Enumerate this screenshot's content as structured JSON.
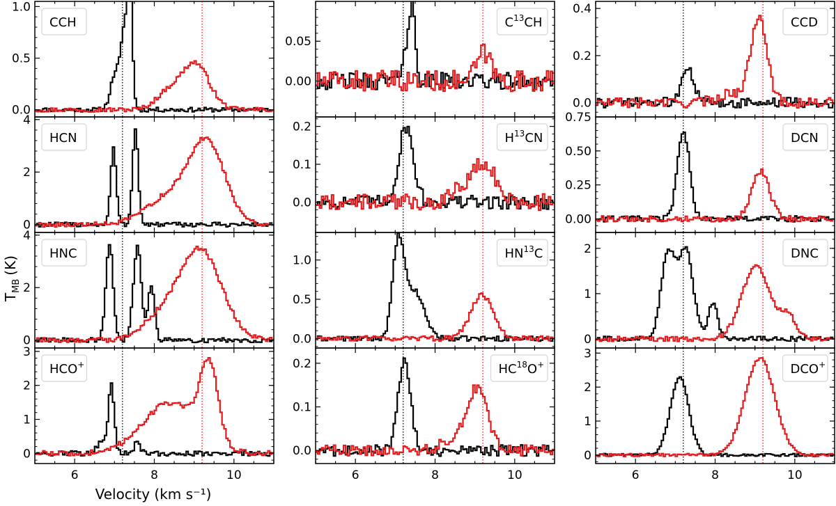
{
  "figure": {
    "xlabel": "Velocity (km s⁻¹)",
    "ylabel_main": "T",
    "ylabel_sub": "MB",
    "ylabel_unit": "(K)"
  },
  "colors": {
    "ref_a": "#000000",
    "ref_b": "#e41a1c"
  },
  "chart_data": {
    "type": "line",
    "xlim": [
      5,
      11
    ],
    "ref_velocity_a": 7.2,
    "ref_velocity_b": 9.2,
    "x_ticks": [
      6,
      8,
      10
    ],
    "panels": [
      {
        "id": "cch",
        "label": "CCH",
        "ylim": [
          -0.07,
          1.05
        ],
        "yticks": [
          0.0,
          0.5,
          1.0
        ],
        "yticklabels": [
          "0.0",
          "0.5",
          "1.0"
        ],
        "black": {
          "type": "peaks",
          "noise": 0.02,
          "base": 0.02,
          "peaks": [
            [
              7.0,
              0.12,
              0.35
            ],
            [
              7.25,
              0.1,
              0.78
            ],
            [
              7.37,
              0.06,
              0.9
            ]
          ]
        },
        "red": {
          "type": "peaks",
          "noise": 0.02,
          "base": 0.02,
          "peaks": [
            [
              9.0,
              0.35,
              0.45
            ],
            [
              8.3,
              0.3,
              0.15
            ]
          ]
        }
      },
      {
        "id": "c13ch",
        "label": "C",
        "label_sup": "13",
        "label_tail": "CH",
        "ylim": [
          -0.045,
          0.1
        ],
        "yticks": [
          0.0,
          0.05
        ],
        "yticklabels": [
          "0.00",
          "0.05"
        ],
        "black": {
          "type": "peaks",
          "noise": 0.01,
          "base": 0.0,
          "peaks": [
            [
              7.25,
              0.1,
              0.045
            ],
            [
              7.42,
              0.07,
              0.085
            ]
          ]
        },
        "red": {
          "type": "peaks",
          "noise": 0.012,
          "base": 0.0,
          "peaks": [
            [
              9.2,
              0.18,
              0.035
            ]
          ]
        }
      },
      {
        "id": "ccd",
        "label": "CCD",
        "ylim": [
          -0.06,
          0.43
        ],
        "yticks": [
          0.0,
          0.2,
          0.4
        ],
        "yticklabels": [
          "0.0",
          "0.2",
          "0.4"
        ],
        "black": {
          "type": "peaks",
          "noise": 0.02,
          "base": 0.02,
          "peaks": [
            [
              7.28,
              0.15,
              0.16
            ]
          ]
        },
        "red": {
          "type": "peaks",
          "noise": 0.02,
          "base": 0.02,
          "peaks": [
            [
              9.08,
              0.2,
              0.37
            ],
            [
              8.4,
              0.35,
              0.04
            ]
          ]
        }
      },
      {
        "id": "hcn",
        "label": "HCN",
        "ylim": [
          -0.3,
          4.1
        ],
        "yticks": [
          0,
          2,
          4
        ],
        "yticklabels": [
          "0",
          "2",
          "4"
        ],
        "black": {
          "type": "peaks",
          "noise": 0.08,
          "base": 0.0,
          "peaks": [
            [
              6.95,
              0.07,
              2.9
            ],
            [
              7.5,
              0.07,
              3.7
            ]
          ]
        },
        "red": {
          "type": "peaks",
          "noise": 0.08,
          "base": 0.0,
          "peaks": [
            [
              9.3,
              0.45,
              3.1
            ],
            [
              8.3,
              0.55,
              1.0
            ]
          ]
        }
      },
      {
        "id": "h13cn",
        "label": "H",
        "label_sup": "13",
        "label_tail": "CN",
        "ylim": [
          -0.08,
          0.225
        ],
        "yticks": [
          0.0,
          0.1,
          0.2
        ],
        "yticklabels": [
          "0.0",
          "0.1",
          "0.2"
        ],
        "black": {
          "type": "peaks",
          "noise": 0.017,
          "base": 0.0,
          "peaks": [
            [
              7.25,
              0.18,
              0.2
            ]
          ]
        },
        "red": {
          "type": "peaks",
          "noise": 0.02,
          "base": 0.0,
          "peaks": [
            [
              9.2,
              0.3,
              0.1
            ],
            [
              8.6,
              0.25,
              0.03
            ]
          ]
        }
      },
      {
        "id": "dcn",
        "label": "DCN",
        "ylim": [
          -0.1,
          0.75
        ],
        "yticks": [
          0.0,
          0.25,
          0.5,
          0.75
        ],
        "yticklabels": [
          "0.00",
          "0.25",
          "0.50",
          "0.75"
        ],
        "black": {
          "type": "peaks",
          "noise": 0.02,
          "base": 0.0,
          "peaks": [
            [
              7.18,
              0.15,
              0.65
            ]
          ]
        },
        "red": {
          "type": "peaks",
          "noise": 0.02,
          "base": 0.0,
          "peaks": [
            [
              9.12,
              0.22,
              0.35
            ]
          ]
        }
      },
      {
        "id": "hnc",
        "label": "HNC",
        "ylim": [
          -0.3,
          4.1
        ],
        "yticks": [
          0,
          2,
          4
        ],
        "yticklabels": [
          "0",
          "2",
          "4"
        ],
        "black": {
          "type": "peaks",
          "noise": 0.08,
          "base": 0.0,
          "peaks": [
            [
              6.85,
              0.09,
              3.7
            ],
            [
              7.55,
              0.1,
              3.6
            ],
            [
              7.9,
              0.08,
              2.1
            ]
          ]
        },
        "red": {
          "type": "peaks",
          "noise": 0.08,
          "base": 0.0,
          "peaks": [
            [
              9.1,
              0.55,
              3.5
            ],
            [
              8.0,
              0.4,
              0.6
            ]
          ]
        }
      },
      {
        "id": "hn13c",
        "label": "HN",
        "label_sup": "13",
        "label_tail": "C",
        "ylim": [
          -0.12,
          1.35
        ],
        "yticks": [
          0.0,
          0.5,
          1.0
        ],
        "yticklabels": [
          "0.0",
          "0.5",
          "1.0"
        ],
        "black": {
          "type": "peaks",
          "noise": 0.03,
          "base": 0.0,
          "peaks": [
            [
              7.05,
              0.14,
              1.15
            ],
            [
              7.45,
              0.25,
              0.6
            ]
          ]
        },
        "red": {
          "type": "peaks",
          "noise": 0.03,
          "base": 0.0,
          "peaks": [
            [
              9.15,
              0.28,
              0.55
            ]
          ]
        }
      },
      {
        "id": "dnc",
        "label": "DNC",
        "ylim": [
          -0.2,
          2.35
        ],
        "yticks": [
          0,
          1,
          2
        ],
        "yticklabels": [
          "0",
          "1",
          "2"
        ],
        "black": {
          "type": "peaks",
          "noise": 0.05,
          "base": 0.0,
          "peaks": [
            [
              6.8,
              0.18,
              1.9
            ],
            [
              7.25,
              0.18,
              1.9
            ],
            [
              7.92,
              0.12,
              0.8
            ]
          ]
        },
        "red": {
          "type": "peaks",
          "noise": 0.05,
          "base": 0.0,
          "peaks": [
            [
              9.0,
              0.35,
              1.6
            ],
            [
              9.8,
              0.2,
              0.5
            ]
          ]
        }
      },
      {
        "id": "hcop",
        "label": "HCO",
        "label_sup": "+",
        "label_tail": "",
        "ylim": [
          -0.3,
          3.1
        ],
        "yticks": [
          0,
          1,
          2,
          3
        ],
        "yticklabels": [
          "0",
          "1",
          "2",
          "3"
        ],
        "black": {
          "type": "peaks",
          "noise": 0.07,
          "base": 0.0,
          "peaks": [
            [
              6.9,
              0.07,
              1.9
            ],
            [
              6.7,
              0.15,
              0.4
            ],
            [
              7.55,
              0.07,
              0.35
            ]
          ]
        },
        "red": {
          "type": "peaks",
          "noise": 0.07,
          "base": 0.0,
          "peaks": [
            [
              9.35,
              0.22,
              2.2
            ],
            [
              8.4,
              0.7,
              1.5
            ]
          ]
        }
      },
      {
        "id": "hc18op",
        "label": "HC",
        "label_sup": "18",
        "label_tail": "O",
        "label_sup2": "+",
        "ylim": [
          -0.03,
          0.235
        ],
        "yticks": [
          0.0,
          0.1,
          0.2
        ],
        "yticklabels": [
          "0.0",
          "0.1",
          "0.2"
        ],
        "black": {
          "type": "peaks",
          "noise": 0.012,
          "base": 0.0,
          "peaks": [
            [
              7.2,
              0.16,
              0.2
            ]
          ]
        },
        "red": {
          "type": "peaks",
          "noise": 0.012,
          "base": 0.0,
          "peaks": [
            [
              9.05,
              0.25,
              0.14
            ],
            [
              8.5,
              0.3,
              0.03
            ]
          ]
        }
      },
      {
        "id": "dcop",
        "label": "DCO",
        "label_sup": "+",
        "label_tail": "",
        "ylim": [
          -0.25,
          3.15
        ],
        "yticks": [
          0,
          1,
          2,
          3
        ],
        "yticklabels": [
          "0",
          "1",
          "2",
          "3"
        ],
        "black": {
          "type": "peaks",
          "noise": 0.04,
          "base": 0.0,
          "peaks": [
            [
              7.08,
              0.23,
              2.3
            ]
          ]
        },
        "red": {
          "type": "peaks",
          "noise": 0.04,
          "base": 0.0,
          "peaks": [
            [
              9.1,
              0.37,
              2.85
            ]
          ]
        }
      }
    ]
  }
}
